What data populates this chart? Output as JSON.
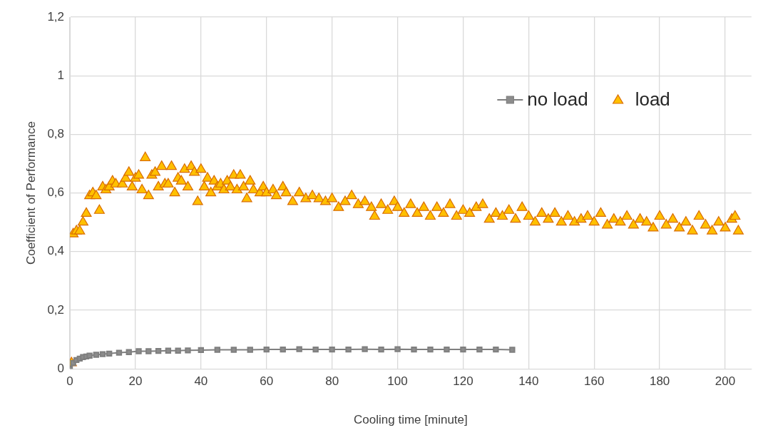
{
  "chart_data": {
    "type": "line",
    "xlabel": "Cooling time [minute]",
    "ylabel": "Coefficient of Performance",
    "xlim": [
      0,
      208
    ],
    "xticks": [
      0,
      20,
      40,
      60,
      80,
      100,
      120,
      140,
      160,
      180,
      200
    ],
    "ylim": [
      0,
      1.2
    ],
    "yticks": [
      0,
      {
        "value": 0.2,
        "label": "0,2"
      },
      {
        "value": 0.4,
        "label": "0,4"
      },
      {
        "value": 0.6,
        "label": "0,6"
      },
      {
        "value": 0.8,
        "label": "0,8"
      },
      1,
      {
        "value": 1.2,
        "label": "1,2"
      }
    ],
    "grid": true,
    "legend": "top right",
    "series": [
      {
        "name": "no load",
        "type": "line",
        "marker": "square",
        "color": "#7f7f7f",
        "x": [
          0,
          1,
          2,
          3,
          4,
          5,
          6,
          8,
          10,
          12,
          15,
          18,
          21,
          24,
          27,
          30,
          33,
          36,
          40,
          45,
          50,
          55,
          60,
          65,
          70,
          75,
          80,
          85,
          90,
          95,
          100,
          105,
          110,
          115,
          120,
          125,
          130,
          135
        ],
        "values": [
          0,
          0.02,
          0.03,
          0.035,
          0.04,
          0.042,
          0.045,
          0.048,
          0.05,
          0.052,
          0.055,
          0.057,
          0.06,
          0.06,
          0.061,
          0.062,
          0.062,
          0.063,
          0.064,
          0.065,
          0.065,
          0.065,
          0.066,
          0.066,
          0.067,
          0.066,
          0.066,
          0.066,
          0.067,
          0.066,
          0.067,
          0.066,
          0.066,
          0.066,
          0.066,
          0.066,
          0.066,
          0.065
        ]
      },
      {
        "name": "load",
        "type": "scatter",
        "marker": "triangle",
        "color": "#ffc000",
        "x": [
          0.5,
          1,
          2,
          3,
          4,
          5,
          6,
          7,
          8,
          9,
          10,
          11,
          12,
          13,
          14,
          16,
          17,
          18,
          19,
          20,
          21,
          22,
          23,
          24,
          25,
          26,
          27,
          28,
          29,
          30,
          31,
          32,
          33,
          34,
          35,
          36,
          37,
          38,
          39,
          40,
          41,
          42,
          43,
          44,
          45,
          46,
          47,
          48,
          49,
          50,
          51,
          52,
          53,
          54,
          55,
          56,
          58,
          59,
          60,
          62,
          63,
          65,
          66,
          68,
          70,
          72,
          74,
          76,
          78,
          80,
          82,
          84,
          86,
          88,
          90,
          92,
          93,
          95,
          97,
          99,
          100,
          102,
          104,
          106,
          108,
          110,
          112,
          114,
          116,
          118,
          120,
          122,
          124,
          126,
          128,
          130,
          132,
          134,
          136,
          138,
          140,
          142,
          144,
          146,
          148,
          150,
          152,
          154,
          156,
          158,
          160,
          162,
          164,
          166,
          168,
          170,
          172,
          174,
          176,
          178,
          180,
          182,
          184,
          186,
          188,
          190,
          192,
          194,
          196,
          198,
          200,
          202,
          203,
          204
        ],
        "values": [
          0.02,
          0.46,
          0.47,
          0.47,
          0.5,
          0.53,
          0.59,
          0.6,
          0.59,
          0.54,
          0.62,
          0.61,
          0.62,
          0.64,
          0.63,
          0.63,
          0.65,
          0.67,
          0.62,
          0.65,
          0.66,
          0.61,
          0.72,
          0.59,
          0.66,
          0.67,
          0.62,
          0.69,
          0.63,
          0.63,
          0.69,
          0.6,
          0.65,
          0.64,
          0.68,
          0.62,
          0.69,
          0.67,
          0.57,
          0.68,
          0.62,
          0.65,
          0.6,
          0.64,
          0.62,
          0.63,
          0.61,
          0.64,
          0.62,
          0.66,
          0.61,
          0.66,
          0.62,
          0.58,
          0.64,
          0.61,
          0.6,
          0.62,
          0.6,
          0.61,
          0.59,
          0.62,
          0.6,
          0.57,
          0.6,
          0.58,
          0.59,
          0.58,
          0.57,
          0.58,
          0.55,
          0.57,
          0.59,
          0.56,
          0.57,
          0.55,
          0.52,
          0.56,
          0.54,
          0.57,
          0.55,
          0.53,
          0.56,
          0.53,
          0.55,
          0.52,
          0.55,
          0.53,
          0.56,
          0.52,
          0.54,
          0.53,
          0.55,
          0.56,
          0.51,
          0.53,
          0.52,
          0.54,
          0.51,
          0.55,
          0.52,
          0.5,
          0.53,
          0.51,
          0.53,
          0.5,
          0.52,
          0.5,
          0.51,
          0.52,
          0.5,
          0.53,
          0.49,
          0.51,
          0.5,
          0.52,
          0.49,
          0.51,
          0.5,
          0.48,
          0.52,
          0.49,
          0.51,
          0.48,
          0.5,
          0.47,
          0.52,
          0.49,
          0.47,
          0.5,
          0.48,
          0.51,
          0.52,
          0.47
        ]
      }
    ]
  }
}
